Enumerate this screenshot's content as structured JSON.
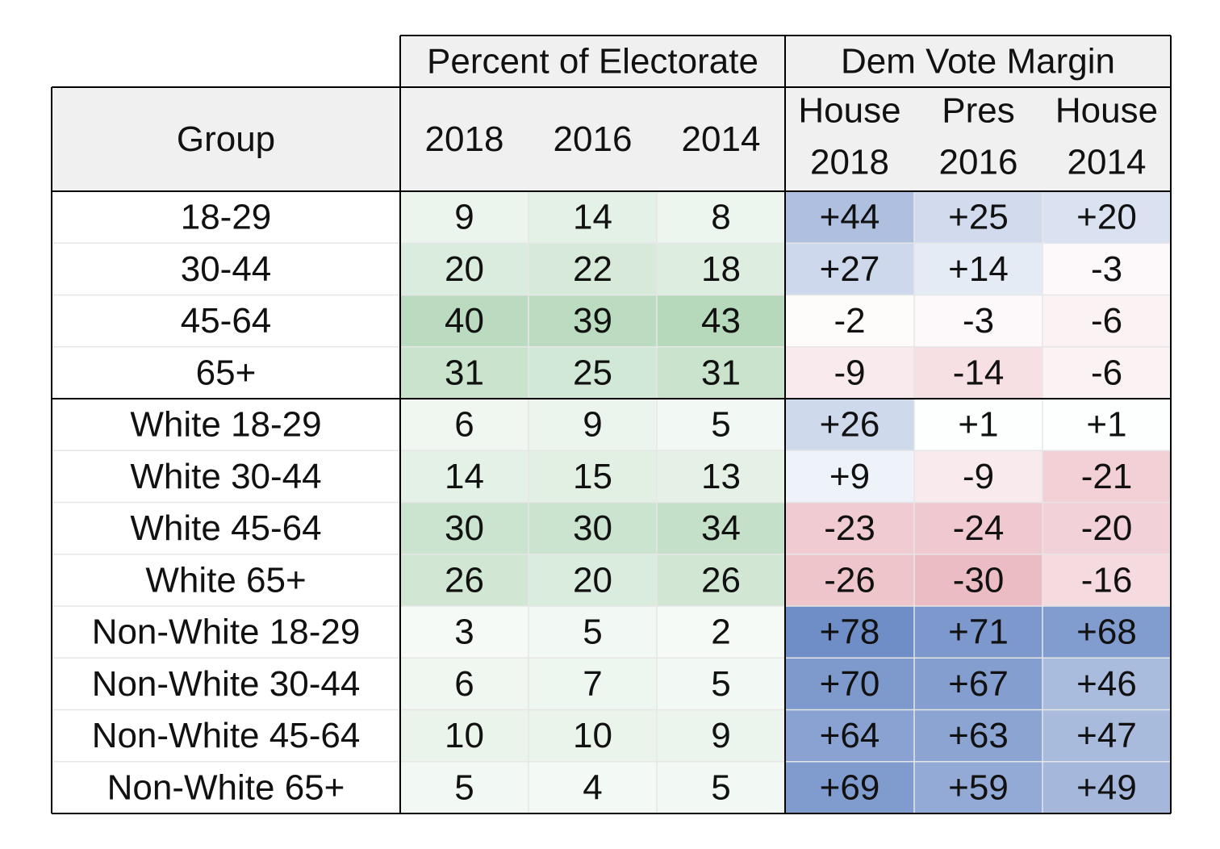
{
  "chart_data": {
    "type": "table",
    "header": {
      "group_col": "Group",
      "sections": [
        {
          "label": "Percent of Electorate",
          "columns": [
            "2018",
            "2016",
            "2014"
          ]
        },
        {
          "label": "Dem Vote Margin",
          "columns": [
            [
              "House",
              "2018"
            ],
            [
              "Pres",
              "2016"
            ],
            [
              "House",
              "2014"
            ]
          ]
        }
      ]
    },
    "rows": [
      {
        "group": "18-29",
        "electorate": [
          9,
          14,
          8
        ],
        "margin": [
          "+44",
          "+25",
          "+20"
        ]
      },
      {
        "group": "30-44",
        "electorate": [
          20,
          22,
          18
        ],
        "margin": [
          "+27",
          "+14",
          "-3"
        ]
      },
      {
        "group": "45-64",
        "electorate": [
          40,
          39,
          43
        ],
        "margin": [
          "-2",
          "-3",
          "-6"
        ]
      },
      {
        "group": "65+",
        "electorate": [
          31,
          25,
          31
        ],
        "margin": [
          "-9",
          "-14",
          "-6"
        ]
      },
      {
        "group": "White 18-29",
        "electorate": [
          6,
          9,
          5
        ],
        "margin": [
          "+26",
          "+1",
          "+1"
        ]
      },
      {
        "group": "White 30-44",
        "electorate": [
          14,
          15,
          13
        ],
        "margin": [
          "+9",
          "-9",
          "-21"
        ]
      },
      {
        "group": "White 45-64",
        "electorate": [
          30,
          30,
          34
        ],
        "margin": [
          "-23",
          "-24",
          "-20"
        ]
      },
      {
        "group": "White 65+",
        "electorate": [
          26,
          20,
          26
        ],
        "margin": [
          "-26",
          "-30",
          "-16"
        ]
      },
      {
        "group": "Non-White 18-29",
        "electorate": [
          3,
          5,
          2
        ],
        "margin": [
          "+78",
          "+71",
          "+68"
        ]
      },
      {
        "group": "Non-White 30-44",
        "electorate": [
          6,
          7,
          5
        ],
        "margin": [
          "+70",
          "+67",
          "+46"
        ]
      },
      {
        "group": "Non-White 45-64",
        "electorate": [
          10,
          10,
          9
        ],
        "margin": [
          "+64",
          "+63",
          "+47"
        ]
      },
      {
        "group": "Non-White 65+",
        "electorate": [
          5,
          4,
          5
        ],
        "margin": [
          "+69",
          "+59",
          "+49"
        ]
      }
    ],
    "colors": {
      "header_bg": "#f0f0f0",
      "green_max": "#b6d9bc",
      "blue_max": "#6f8ec7",
      "red_max": "#ecbcc4",
      "neutral": "#ffffff",
      "border": "#000000",
      "faint_line": "#e6e6e6"
    }
  }
}
